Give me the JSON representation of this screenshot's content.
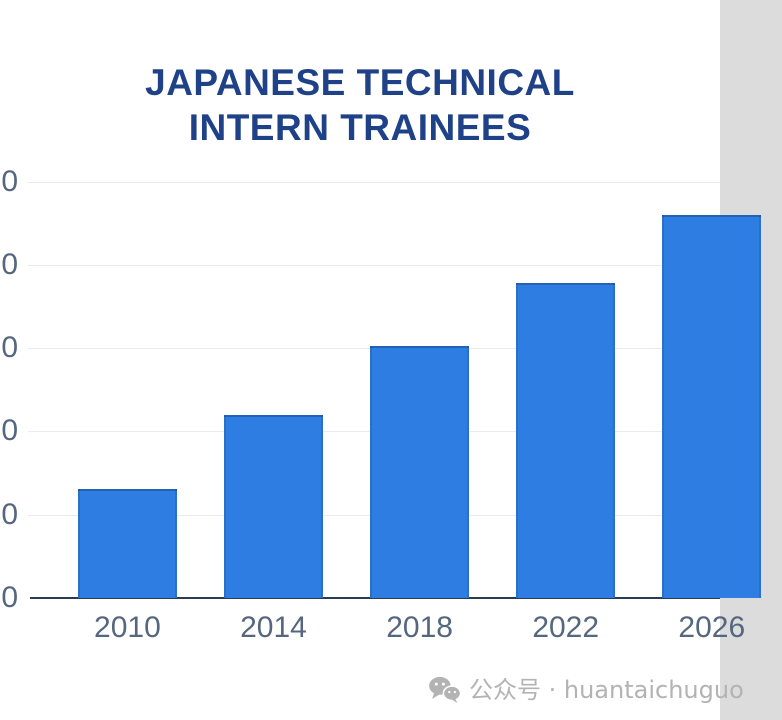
{
  "title": {
    "line1": "JAPANESE TECHNICAL",
    "line2": "INTERN TRAINEES"
  },
  "watermark": {
    "icon": "wechat-icon",
    "text": "公众号 · huantaichuguo"
  },
  "colors": {
    "background": "#FFFFFF",
    "bar": "#2D7DE2",
    "bar_edge": "#2663AE",
    "title": "#1E4187",
    "label": "#55677E",
    "grid": "#E9EBEE",
    "axis": "#2A3C52",
    "watermark": "#B3B3B3"
  },
  "chart_data": {
    "type": "bar",
    "title": "JAPANESE TECHNICAL INTERN TRAINEES",
    "categories": [
      "2010",
      "2014",
      "2018",
      "2022",
      "2026"
    ],
    "values": [
      131000,
      220000,
      303000,
      378000,
      460000
    ],
    "xlabel": "",
    "ylabel": "",
    "ylim": [
      0,
      550000
    ],
    "y_gridline_values": [
      100000,
      200000,
      300000,
      400000,
      500000
    ],
    "y_tick_labels_visible": [
      "0",
      "0",
      "0",
      "0",
      "0",
      "0"
    ],
    "grid": true,
    "legend": "none",
    "bar_color": "#2D7DE2"
  }
}
